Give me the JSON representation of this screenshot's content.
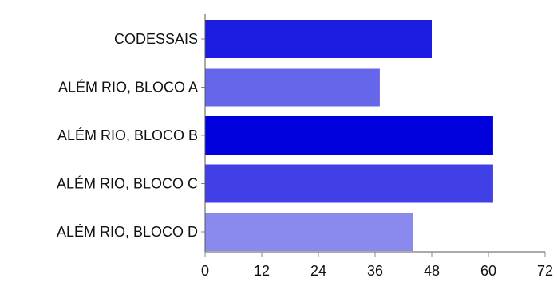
{
  "chart_data": {
    "type": "bar",
    "orientation": "horizontal",
    "categories": [
      "CODESSAIS",
      "ALÉM RIO, BLOCO A",
      "ALÉM RIO, BLOCO B",
      "ALÉM RIO, BLOCO C",
      "ALÉM RIO, BLOCO D"
    ],
    "values": [
      48,
      37,
      61,
      61,
      44
    ],
    "bar_colors": [
      "#1c1ce0",
      "#6666ea",
      "#0000dd",
      "#4040e6",
      "#8a8aee"
    ],
    "xticks": [
      "0",
      "12",
      "24",
      "36",
      "48",
      "60",
      "72"
    ],
    "xlim": [
      0,
      72
    ],
    "title": "",
    "xlabel": "",
    "ylabel": "",
    "grid": false,
    "legend": false
  }
}
